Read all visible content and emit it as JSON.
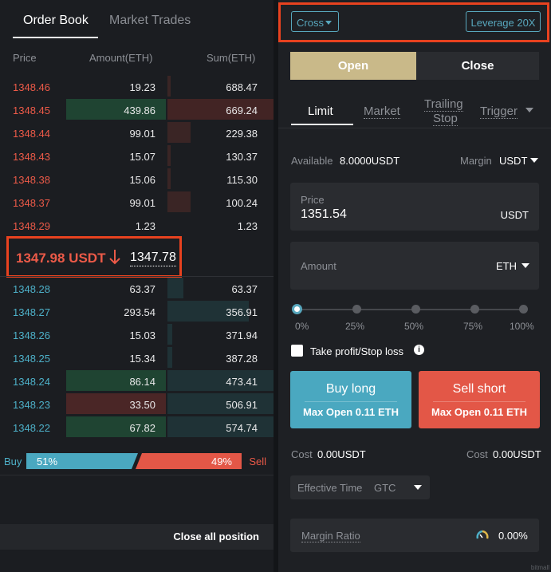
{
  "orderbook": {
    "tabs": [
      {
        "label": "Order Book"
      },
      {
        "label": "Market Trades"
      }
    ],
    "headers": {
      "price": "Price",
      "amount": "Amount(ETH)",
      "sum": "Sum(ETH)"
    },
    "asks": [
      {
        "price": "1348.46",
        "amount": "19.23",
        "sum": "688.47"
      },
      {
        "price": "1348.45",
        "amount": "439.86",
        "sum": "669.24"
      },
      {
        "price": "1348.44",
        "amount": "99.01",
        "sum": "229.38"
      },
      {
        "price": "1348.43",
        "amount": "15.07",
        "sum": "130.37"
      },
      {
        "price": "1348.38",
        "amount": "15.06",
        "sum": "115.30"
      },
      {
        "price": "1348.37",
        "amount": "99.01",
        "sum": "100.24"
      },
      {
        "price": "1348.29",
        "amount": "1.23",
        "sum": "1.23"
      }
    ],
    "last_price": "1347.98 USDT",
    "mark_price": "1347.78",
    "bids": [
      {
        "price": "1348.28",
        "amount": "63.37",
        "sum": "63.37"
      },
      {
        "price": "1348.27",
        "amount": "293.54",
        "sum": "356.91"
      },
      {
        "price": "1348.26",
        "amount": "15.03",
        "sum": "371.94"
      },
      {
        "price": "1348.25",
        "amount": "15.34",
        "sum": "387.28"
      },
      {
        "price": "1348.24",
        "amount": "86.14",
        "sum": "473.41"
      },
      {
        "price": "1348.23",
        "amount": "33.50",
        "sum": "506.91"
      },
      {
        "price": "1348.22",
        "amount": "67.82",
        "sum": "574.74"
      }
    ],
    "ratio": {
      "buy_label": "Buy",
      "buy_pct": "51%",
      "sell_pct": "49%",
      "sell_label": "Sell",
      "buy_fraction": 0.51
    },
    "close_all": "Close all position"
  },
  "order": {
    "margin_mode": "Cross",
    "leverage": "Leverage 20X",
    "open_label": "Open",
    "close_label": "Close",
    "type_tabs": [
      {
        "label": "Limit"
      },
      {
        "label": "Market"
      },
      {
        "label": "Trailing"
      },
      {
        "label": "Stop"
      },
      {
        "label": "Trigger"
      }
    ],
    "available_label": "Available",
    "available_value": "8.0000USDT",
    "margin_label": "Margin",
    "margin_value": "USDT",
    "price_label": "Price",
    "price_value": "1351.54",
    "price_unit": "USDT",
    "amount_label": "Amount",
    "amount_unit": "ETH",
    "slider_marks": [
      "0%",
      "25%",
      "50%",
      "75%",
      "100%"
    ],
    "tpsl_label": "Take profit/Stop loss",
    "buy_long": {
      "title": "Buy long",
      "sub": "Max Open 0.11 ETH"
    },
    "sell_short": {
      "title": "Sell short",
      "sub": "Max Open 0.11 ETH"
    },
    "cost_left_label": "Cost",
    "cost_left_value": "0.00USDT",
    "cost_right_label": "Cost",
    "cost_right_value": "0.00USDT",
    "effective_time_label": "Effective Time",
    "effective_time_value": "GTC",
    "margin_ratio_label": "Margin Ratio",
    "margin_ratio_value": "0.00%",
    "watermark": "bitmall"
  },
  "colors": {
    "ask": "#ec5a48",
    "bid": "#4db0c8",
    "open": "#c9b989",
    "buy": "#4aa8c0",
    "sell": "#e35747",
    "highlight": "#e8421f"
  }
}
